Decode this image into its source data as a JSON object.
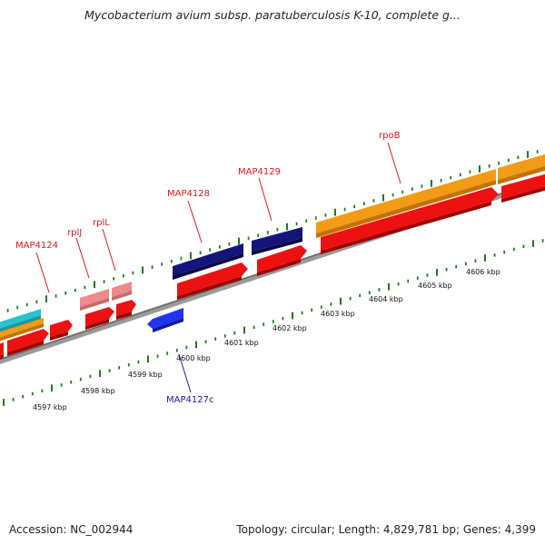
{
  "header": {
    "title": "Mycobacterium avium subsp. paratuberculosis K-10, complete g..."
  },
  "footer": {
    "accession": "Accession: NC_002944",
    "summary": "Topology: circular; Length: 4,829,781 bp; Genes: 4,399"
  },
  "colors": {
    "label_forward": "#e8141c",
    "label_reverse": "#1a1aa8",
    "tick": "#1f7a1f",
    "backbone": "#9a9a9a",
    "red_gene": "#ee1111",
    "orange_gene": "#f39a17",
    "navy_gene": "#14147a",
    "pink_gene": "#ee8a8a",
    "cyan_gene": "#29c3cf",
    "blue_gene": "#2233ee"
  },
  "scale": {
    "kbp_labels": [
      "4597 kbp",
      "4598 kbp",
      "4599 kbp",
      "4600 kbp",
      "4601 kbp",
      "4602 kbp",
      "4603 kbp",
      "4604 kbp",
      "4605 kbp",
      "4606 kbp"
    ]
  },
  "gene_labels": [
    {
      "id": "MAP4124",
      "label": "MAP4124",
      "strand": "forward"
    },
    {
      "id": "rplJ",
      "label": "rplJ",
      "strand": "forward"
    },
    {
      "id": "rplL",
      "label": "rplL",
      "strand": "forward"
    },
    {
      "id": "MAP4128",
      "label": "MAP4128",
      "strand": "forward"
    },
    {
      "id": "MAP4129",
      "label": "MAP4129",
      "strand": "forward"
    },
    {
      "id": "rpoB",
      "label": "rpoB",
      "strand": "forward"
    },
    {
      "id": "MAP4127c",
      "label": "MAP4127c",
      "strand": "reverse"
    }
  ]
}
